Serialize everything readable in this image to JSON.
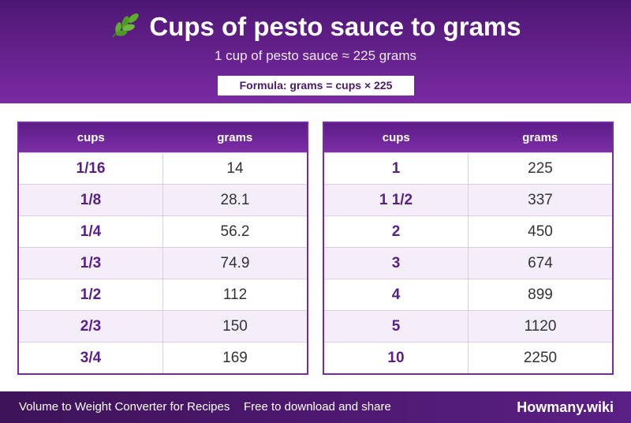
{
  "header": {
    "title": "Cups of pesto sauce to grams",
    "subtitle": "1 cup of pesto sauce ≈ 225 grams",
    "formula": "Formula: grams = cups × 225"
  },
  "table_left": {
    "col_cups": "cups",
    "col_grams": "grams",
    "rows": [
      {
        "cups": "1/16",
        "grams": "14"
      },
      {
        "cups": "1/8",
        "grams": "28.1"
      },
      {
        "cups": "1/4",
        "grams": "56.2"
      },
      {
        "cups": "1/3",
        "grams": "74.9"
      },
      {
        "cups": "1/2",
        "grams": "112"
      },
      {
        "cups": "2/3",
        "grams": "150"
      },
      {
        "cups": "3/4",
        "grams": "169"
      }
    ]
  },
  "table_right": {
    "col_cups": "cups",
    "col_grams": "grams",
    "rows": [
      {
        "cups": "1",
        "grams": "225"
      },
      {
        "cups": "1 1/2",
        "grams": "337"
      },
      {
        "cups": "2",
        "grams": "450"
      },
      {
        "cups": "3",
        "grams": "674"
      },
      {
        "cups": "4",
        "grams": "899"
      },
      {
        "cups": "5",
        "grams": "1120"
      },
      {
        "cups": "10",
        "grams": "2250"
      }
    ]
  },
  "footer": {
    "left_text": "Volume to Weight Converter for Recipes",
    "middle_text": "Free to download and share",
    "brand": "Howmany.wiki"
  },
  "icons": {
    "title_icon": "herb-leaf-icon"
  },
  "colors": {
    "accent": "#7a2ba3",
    "header_dark": "#4e1774",
    "row_alt": "#f3eefa",
    "cups_text": "#5a1f85"
  }
}
